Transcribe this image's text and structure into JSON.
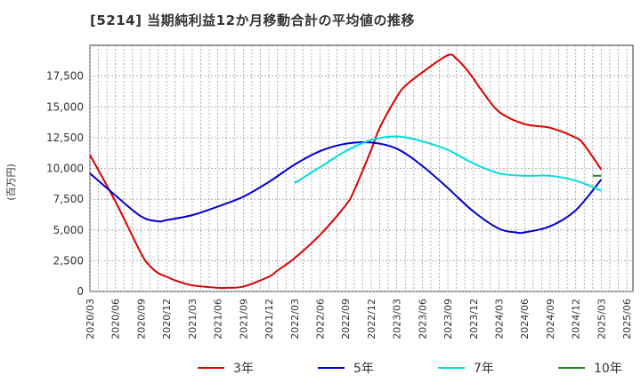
{
  "chart_data": {
    "type": "line",
    "title": "[5214]  当期純利益12か月移動合計の平均値の推移",
    "ylabel": "(百万円)",
    "xlabel": "",
    "ylim": [
      0,
      20000
    ],
    "y_ticks": [
      0,
      2500,
      5000,
      7500,
      10000,
      12500,
      15000,
      17500
    ],
    "y_tick_labels": [
      "0",
      "2,500",
      "5,000",
      "7,500",
      "10,000",
      "12,500",
      "15,000",
      "17,500"
    ],
    "x_ticks": [
      "2020/03",
      "2020/06",
      "2020/09",
      "2020/12",
      "2021/03",
      "2021/06",
      "2021/09",
      "2021/12",
      "2022/03",
      "2022/06",
      "2022/09",
      "2022/12",
      "2023/03",
      "2023/06",
      "2023/09",
      "2023/12",
      "2024/03",
      "2024/06",
      "2024/09",
      "2024/12",
      "2025/03",
      "2025/06"
    ],
    "grid": true,
    "legend_position": "bottom",
    "series": [
      {
        "name": "3年",
        "color": "#dd0000",
        "x": [
          "2020/03",
          "2020/06",
          "2020/09",
          "2020/10",
          "2020/11",
          "2020/12",
          "2021/01",
          "2021/03",
          "2021/06",
          "2021/07",
          "2021/09",
          "2021/12",
          "2022/01",
          "2022/03",
          "2022/06",
          "2022/09",
          "2022/10",
          "2022/12",
          "2023/01",
          "2023/03",
          "2023/04",
          "2023/06",
          "2023/09",
          "2023/10",
          "2023/11",
          "2023/12",
          "2024/01",
          "2024/03",
          "2024/06",
          "2024/09",
          "2024/12",
          "2025/01",
          "2025/03"
        ],
        "values": [
          11100,
          7300,
          3100,
          2100,
          1500,
          1200,
          900,
          500,
          300,
          300,
          400,
          1200,
          1700,
          2700,
          4600,
          7000,
          8200,
          11500,
          13300,
          15800,
          16700,
          17800,
          19200,
          18900,
          18200,
          17300,
          16300,
          14600,
          13600,
          13300,
          12500,
          11900,
          9900
        ]
      },
      {
        "name": "5年",
        "color": "#0000cc",
        "x": [
          "2020/03",
          "2020/06",
          "2020/09",
          "2020/11",
          "2020/12",
          "2021/03",
          "2021/06",
          "2021/09",
          "2021/12",
          "2022/03",
          "2022/06",
          "2022/09",
          "2022/12",
          "2023/03",
          "2023/06",
          "2023/09",
          "2023/12",
          "2024/03",
          "2024/05",
          "2024/06",
          "2024/09",
          "2024/12",
          "2025/03"
        ],
        "values": [
          9600,
          7800,
          6100,
          5700,
          5800,
          6200,
          6900,
          7700,
          8900,
          10300,
          11400,
          12000,
          12100,
          11600,
          10200,
          8400,
          6500,
          5100,
          4800,
          4800,
          5300,
          6600,
          9100
        ]
      },
      {
        "name": "7年",
        "color": "#00dddd",
        "x": [
          "2022/03",
          "2022/06",
          "2022/09",
          "2022/12",
          "2023/03",
          "2023/06",
          "2023/09",
          "2023/12",
          "2024/03",
          "2024/06",
          "2024/09",
          "2024/12",
          "2025/03"
        ],
        "values": [
          8800,
          10100,
          11400,
          12300,
          12600,
          12200,
          11500,
          10400,
          9600,
          9400,
          9400,
          9000,
          8200
        ]
      },
      {
        "name": "10年",
        "color": "#228822",
        "x": [
          "2025/02",
          "2025/03"
        ],
        "values": [
          9400,
          9400
        ]
      }
    ]
  }
}
